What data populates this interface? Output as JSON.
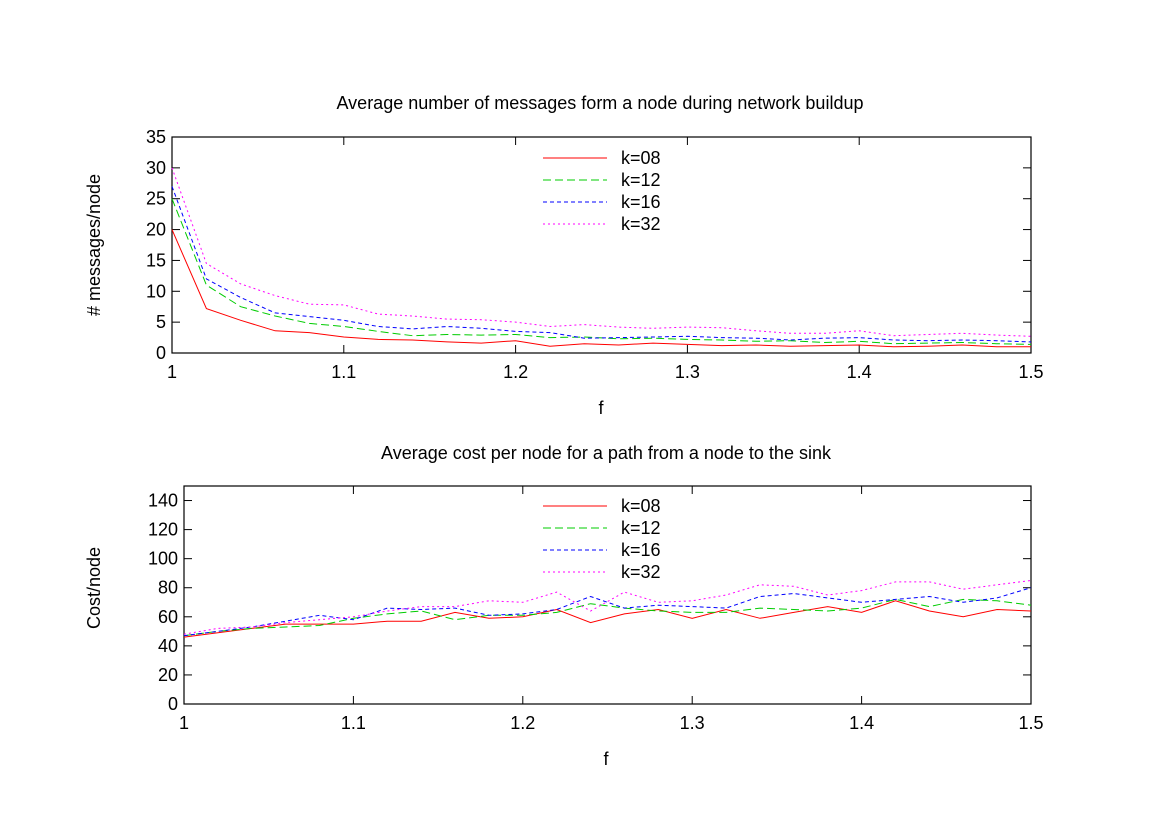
{
  "chart_data": [
    {
      "type": "line",
      "title": "Average number of messages form a node during network buildup",
      "xlabel": "f",
      "ylabel": "# messages/node",
      "xlim": [
        1,
        1.5
      ],
      "ylim": [
        0,
        35
      ],
      "xticks": [
        "1",
        "1.1",
        "1.2",
        "1.3",
        "1.4",
        "1.5"
      ],
      "yticks": [
        "0",
        "5",
        "10",
        "15",
        "20",
        "25",
        "30",
        "35"
      ],
      "grid": false,
      "legend_position": "top-center",
      "x": [
        1.0,
        1.02,
        1.04,
        1.06,
        1.08,
        1.1,
        1.12,
        1.14,
        1.16,
        1.18,
        1.2,
        1.22,
        1.24,
        1.26,
        1.28,
        1.3,
        1.32,
        1.34,
        1.36,
        1.38,
        1.4,
        1.42,
        1.44,
        1.46,
        1.48,
        1.5
      ],
      "series": [
        {
          "name": "k=08",
          "color": "#ff0000",
          "dash": "solid",
          "values": [
            20.0,
            7.2,
            5.3,
            3.6,
            3.3,
            2.6,
            2.2,
            2.1,
            1.8,
            1.6,
            2.0,
            1.1,
            1.5,
            1.3,
            1.6,
            1.4,
            1.2,
            1.3,
            1.1,
            1.2,
            1.3,
            1.0,
            1.1,
            1.3,
            1.0,
            1.0
          ]
        },
        {
          "name": "k=12",
          "color": "#00cc00",
          "dash": "8,4",
          "values": [
            25.0,
            11.0,
            7.5,
            6.0,
            4.8,
            4.3,
            3.5,
            2.8,
            3.0,
            2.9,
            3.0,
            2.5,
            2.6,
            2.3,
            2.4,
            2.2,
            2.1,
            1.9,
            2.0,
            1.7,
            1.9,
            1.5,
            1.6,
            1.7,
            1.5,
            1.4
          ]
        },
        {
          "name": "k=16",
          "color": "#0000ff",
          "dash": "4,3",
          "values": [
            27.0,
            12.0,
            9.0,
            6.5,
            5.9,
            5.3,
            4.3,
            3.9,
            4.3,
            4.0,
            3.5,
            3.3,
            2.4,
            2.5,
            2.6,
            2.7,
            2.5,
            2.4,
            2.1,
            2.4,
            2.5,
            2.1,
            2.0,
            2.1,
            2.0,
            1.8
          ]
        },
        {
          "name": "k=32",
          "color": "#ff00ff",
          "dash": "2,3",
          "values": [
            30.0,
            14.5,
            11.2,
            9.3,
            7.9,
            7.8,
            6.3,
            6.0,
            5.5,
            5.4,
            5.0,
            4.3,
            4.6,
            4.2,
            4.0,
            4.2,
            4.1,
            3.6,
            3.2,
            3.2,
            3.6,
            2.8,
            3.0,
            3.2,
            2.9,
            2.7
          ]
        }
      ]
    },
    {
      "type": "line",
      "title": "Average cost per node for a path from a node to the sink",
      "xlabel": "f",
      "ylabel": "Cost/node",
      "xlim": [
        1,
        1.5
      ],
      "ylim": [
        0,
        150
      ],
      "xticks": [
        "1",
        "1.1",
        "1.2",
        "1.3",
        "1.4",
        "1.5"
      ],
      "yticks": [
        "0",
        "20",
        "40",
        "60",
        "80",
        "100",
        "120",
        "140"
      ],
      "grid": false,
      "legend_position": "top-center",
      "x": [
        1.0,
        1.02,
        1.04,
        1.06,
        1.08,
        1.1,
        1.12,
        1.14,
        1.16,
        1.18,
        1.2,
        1.22,
        1.24,
        1.26,
        1.28,
        1.3,
        1.32,
        1.34,
        1.36,
        1.38,
        1.4,
        1.42,
        1.44,
        1.46,
        1.48,
        1.5
      ],
      "series": [
        {
          "name": "k=08",
          "color": "#ff0000",
          "dash": "solid",
          "values": [
            46,
            49,
            52,
            55,
            55,
            55,
            57,
            57,
            63,
            59,
            60,
            65,
            56,
            62,
            65,
            59,
            65,
            59,
            63,
            67,
            63,
            71,
            64,
            60,
            65,
            64
          ]
        },
        {
          "name": "k=12",
          "color": "#00cc00",
          "dash": "8,4",
          "values": [
            47,
            50,
            52,
            53,
            54,
            59,
            62,
            64,
            58,
            61,
            61,
            63,
            69,
            66,
            64,
            63,
            63,
            66,
            65,
            64,
            66,
            72,
            67,
            72,
            71,
            68
          ]
        },
        {
          "name": "k=16",
          "color": "#0000ff",
          "dash": "4,3",
          "values": [
            47,
            50,
            53,
            57,
            61,
            58,
            66,
            65,
            66,
            61,
            62,
            65,
            74,
            66,
            68,
            67,
            66,
            74,
            76,
            73,
            70,
            72,
            74,
            70,
            73,
            80
          ]
        },
        {
          "name": "k=32",
          "color": "#ff00ff",
          "dash": "2,3",
          "values": [
            48,
            52,
            53,
            56,
            58,
            60,
            64,
            67,
            67,
            71,
            70,
            77,
            64,
            77,
            70,
            71,
            75,
            82,
            81,
            75,
            78,
            84,
            84,
            79,
            82,
            85
          ]
        }
      ]
    }
  ]
}
